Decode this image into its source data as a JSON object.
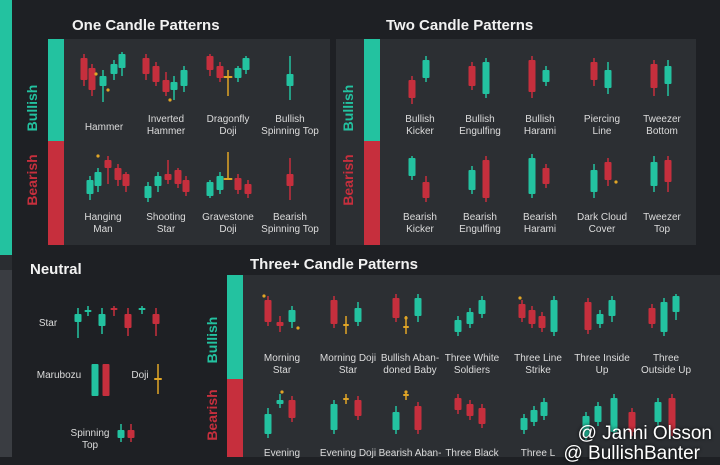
{
  "sections": {
    "one": "One Candle Patterns",
    "two": "Two Candle Patterns",
    "neutral": "Neutral",
    "three": "Three+ Candle Patterns"
  },
  "sides": {
    "bullish": "Bullish",
    "bearish": "Bearish"
  },
  "one_bullish": [
    "Hammer",
    "Inverted\nHammer",
    "Dragonfly\nDoji",
    "Bullish\nSpinning Top"
  ],
  "one_bearish": [
    "Hanging\nMan",
    "Shooting\nStar",
    "Gravestone\nDoji",
    "Bearish\nSpinning Top"
  ],
  "two_bullish": [
    "Bullish\nKicker",
    "Bullish\nEngulfing",
    "Bullish\nHarami",
    "Piercing\nLine",
    "Tweezer\nBottom"
  ],
  "two_bearish": [
    "Bearish\nKicker",
    "Bearish\nEngulfing",
    "Bearish\nHarami",
    "Dark Cloud\nCover",
    "Tweezer\nTop"
  ],
  "neutral": [
    "Star",
    "Marubozu",
    "Doji",
    "Spinning\nTop"
  ],
  "three_bullish": [
    "Morning\nStar",
    "Morning Doji\nStar",
    "Bullish Aban-\ndoned Baby",
    "Three White\nSoldiers",
    "Three Line\nStrike",
    "Three Inside\nUp",
    "Three\nOutside Up"
  ],
  "three_bearish": [
    "Evening",
    "Evening Doji",
    "Bearish Aban-",
    "Three Black",
    "Three L"
  ],
  "watermark": {
    "line1": "@ Janni Olsson",
    "line2": "@ BullishBanter"
  },
  "colors": {
    "green": "#23c2a0",
    "red": "#c62f3d",
    "gold": "#e0a526",
    "panel": "#2c2f33",
    "bg": "#1e2024"
  }
}
